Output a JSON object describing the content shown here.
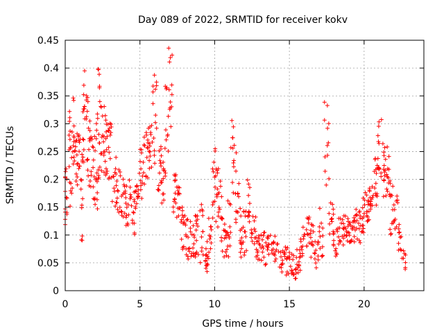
{
  "colors": {
    "series": "#ff0000",
    "grid": "#a0a0a0",
    "frame": "#000000",
    "background": "#ffffff"
  },
  "chart_data": {
    "type": "scatter",
    "title": "Day 089 of 2022, SRMTID for receiver kokv",
    "xlabel": "GPS time / hours",
    "ylabel": "SRMTID / TECUs",
    "xlim": [
      0,
      24
    ],
    "ylim": [
      0,
      0.45
    ],
    "xticks": [
      0,
      5,
      10,
      15,
      20
    ],
    "xtick_labels": [
      "0",
      "5",
      "10",
      "15",
      "20"
    ],
    "yticks": [
      0,
      0.05,
      0.1,
      0.15,
      0.2,
      0.25,
      0.3,
      0.35,
      0.4,
      0.45
    ],
    "ytick_labels": [
      "0",
      "0.05",
      "0.1",
      "0.15",
      "0.2",
      "0.25",
      "0.3",
      "0.35",
      "0.4",
      "0.45"
    ],
    "grid": true,
    "marker": "+",
    "series": [
      {
        "name": "SRMTID",
        "note": "Approximate envelope of dense scatter: [GPS hour, lower SRMTID, upper SRMTID, point count]",
        "envelope": [
          [
            0.0,
            0.1,
            0.22,
            14
          ],
          [
            0.3,
            0.13,
            0.33,
            14
          ],
          [
            0.5,
            0.17,
            0.35,
            14
          ],
          [
            0.7,
            0.18,
            0.3,
            12
          ],
          [
            0.9,
            0.16,
            0.28,
            12
          ],
          [
            1.1,
            0.09,
            0.26,
            12
          ],
          [
            1.25,
            0.12,
            0.4,
            14
          ],
          [
            1.5,
            0.2,
            0.38,
            14
          ],
          [
            1.7,
            0.16,
            0.31,
            12
          ],
          [
            1.9,
            0.12,
            0.28,
            12
          ],
          [
            2.1,
            0.14,
            0.32,
            12
          ],
          [
            2.25,
            0.18,
            0.4,
            14
          ],
          [
            2.5,
            0.2,
            0.34,
            14
          ],
          [
            2.75,
            0.17,
            0.32,
            14
          ],
          [
            3.0,
            0.2,
            0.32,
            14
          ],
          [
            3.3,
            0.15,
            0.24,
            12
          ],
          [
            3.6,
            0.14,
            0.22,
            12
          ],
          [
            3.9,
            0.12,
            0.22,
            12
          ],
          [
            4.2,
            0.1,
            0.2,
            14
          ],
          [
            4.5,
            0.1,
            0.18,
            14
          ],
          [
            4.8,
            0.12,
            0.2,
            14
          ],
          [
            5.1,
            0.16,
            0.26,
            14
          ],
          [
            5.4,
            0.19,
            0.3,
            14
          ],
          [
            5.7,
            0.2,
            0.3,
            14
          ],
          [
            6.0,
            0.22,
            0.39,
            14
          ],
          [
            6.3,
            0.18,
            0.26,
            12
          ],
          [
            6.55,
            0.15,
            0.25,
            12
          ],
          [
            6.8,
            0.2,
            0.37,
            12
          ],
          [
            7.05,
            0.28,
            0.44,
            12
          ],
          [
            7.3,
            0.12,
            0.21,
            12
          ],
          [
            7.6,
            0.12,
            0.19,
            12
          ],
          [
            7.9,
            0.07,
            0.15,
            14
          ],
          [
            8.2,
            0.05,
            0.13,
            14
          ],
          [
            8.5,
            0.06,
            0.13,
            14
          ],
          [
            8.8,
            0.06,
            0.14,
            14
          ],
          [
            9.1,
            0.05,
            0.17,
            12
          ],
          [
            9.4,
            0.03,
            0.1,
            14
          ],
          [
            9.7,
            0.05,
            0.13,
            12
          ],
          [
            9.95,
            0.12,
            0.26,
            12
          ],
          [
            10.2,
            0.11,
            0.22,
            14
          ],
          [
            10.45,
            0.07,
            0.2,
            12
          ],
          [
            10.7,
            0.04,
            0.12,
            12
          ],
          [
            10.95,
            0.06,
            0.17,
            12
          ],
          [
            11.2,
            0.17,
            0.31,
            12
          ],
          [
            11.5,
            0.12,
            0.26,
            12
          ],
          [
            11.75,
            0.05,
            0.15,
            12
          ],
          [
            12.0,
            0.06,
            0.15,
            12
          ],
          [
            12.3,
            0.12,
            0.2,
            12
          ],
          [
            12.6,
            0.08,
            0.14,
            12
          ],
          [
            12.9,
            0.05,
            0.11,
            14
          ],
          [
            13.3,
            0.04,
            0.11,
            14
          ],
          [
            13.7,
            0.04,
            0.1,
            14
          ],
          [
            14.1,
            0.05,
            0.1,
            14
          ],
          [
            14.5,
            0.03,
            0.08,
            14
          ],
          [
            14.9,
            0.02,
            0.08,
            14
          ],
          [
            15.3,
            0.02,
            0.07,
            14
          ],
          [
            15.6,
            0.03,
            0.08,
            14
          ],
          [
            15.9,
            0.06,
            0.12,
            12
          ],
          [
            16.2,
            0.08,
            0.14,
            12
          ],
          [
            16.5,
            0.06,
            0.12,
            12
          ],
          [
            16.8,
            0.04,
            0.09,
            12
          ],
          [
            17.1,
            0.06,
            0.15,
            12
          ],
          [
            17.5,
            0.16,
            0.34,
            12
          ],
          [
            17.8,
            0.08,
            0.16,
            12
          ],
          [
            18.1,
            0.06,
            0.11,
            12
          ],
          [
            18.4,
            0.06,
            0.13,
            12
          ],
          [
            18.7,
            0.08,
            0.14,
            14
          ],
          [
            19.0,
            0.07,
            0.13,
            14
          ],
          [
            19.3,
            0.08,
            0.14,
            14
          ],
          [
            19.6,
            0.08,
            0.15,
            14
          ],
          [
            19.9,
            0.1,
            0.17,
            14
          ],
          [
            20.2,
            0.12,
            0.18,
            14
          ],
          [
            20.5,
            0.14,
            0.2,
            14
          ],
          [
            20.8,
            0.15,
            0.24,
            14
          ],
          [
            21.05,
            0.2,
            0.31,
            14
          ],
          [
            21.3,
            0.16,
            0.27,
            12
          ],
          [
            21.55,
            0.17,
            0.26,
            12
          ],
          [
            21.8,
            0.1,
            0.2,
            12
          ],
          [
            22.1,
            0.1,
            0.17,
            12
          ],
          [
            22.4,
            0.06,
            0.12,
            10
          ],
          [
            22.65,
            0.03,
            0.09,
            8
          ]
        ]
      }
    ]
  }
}
